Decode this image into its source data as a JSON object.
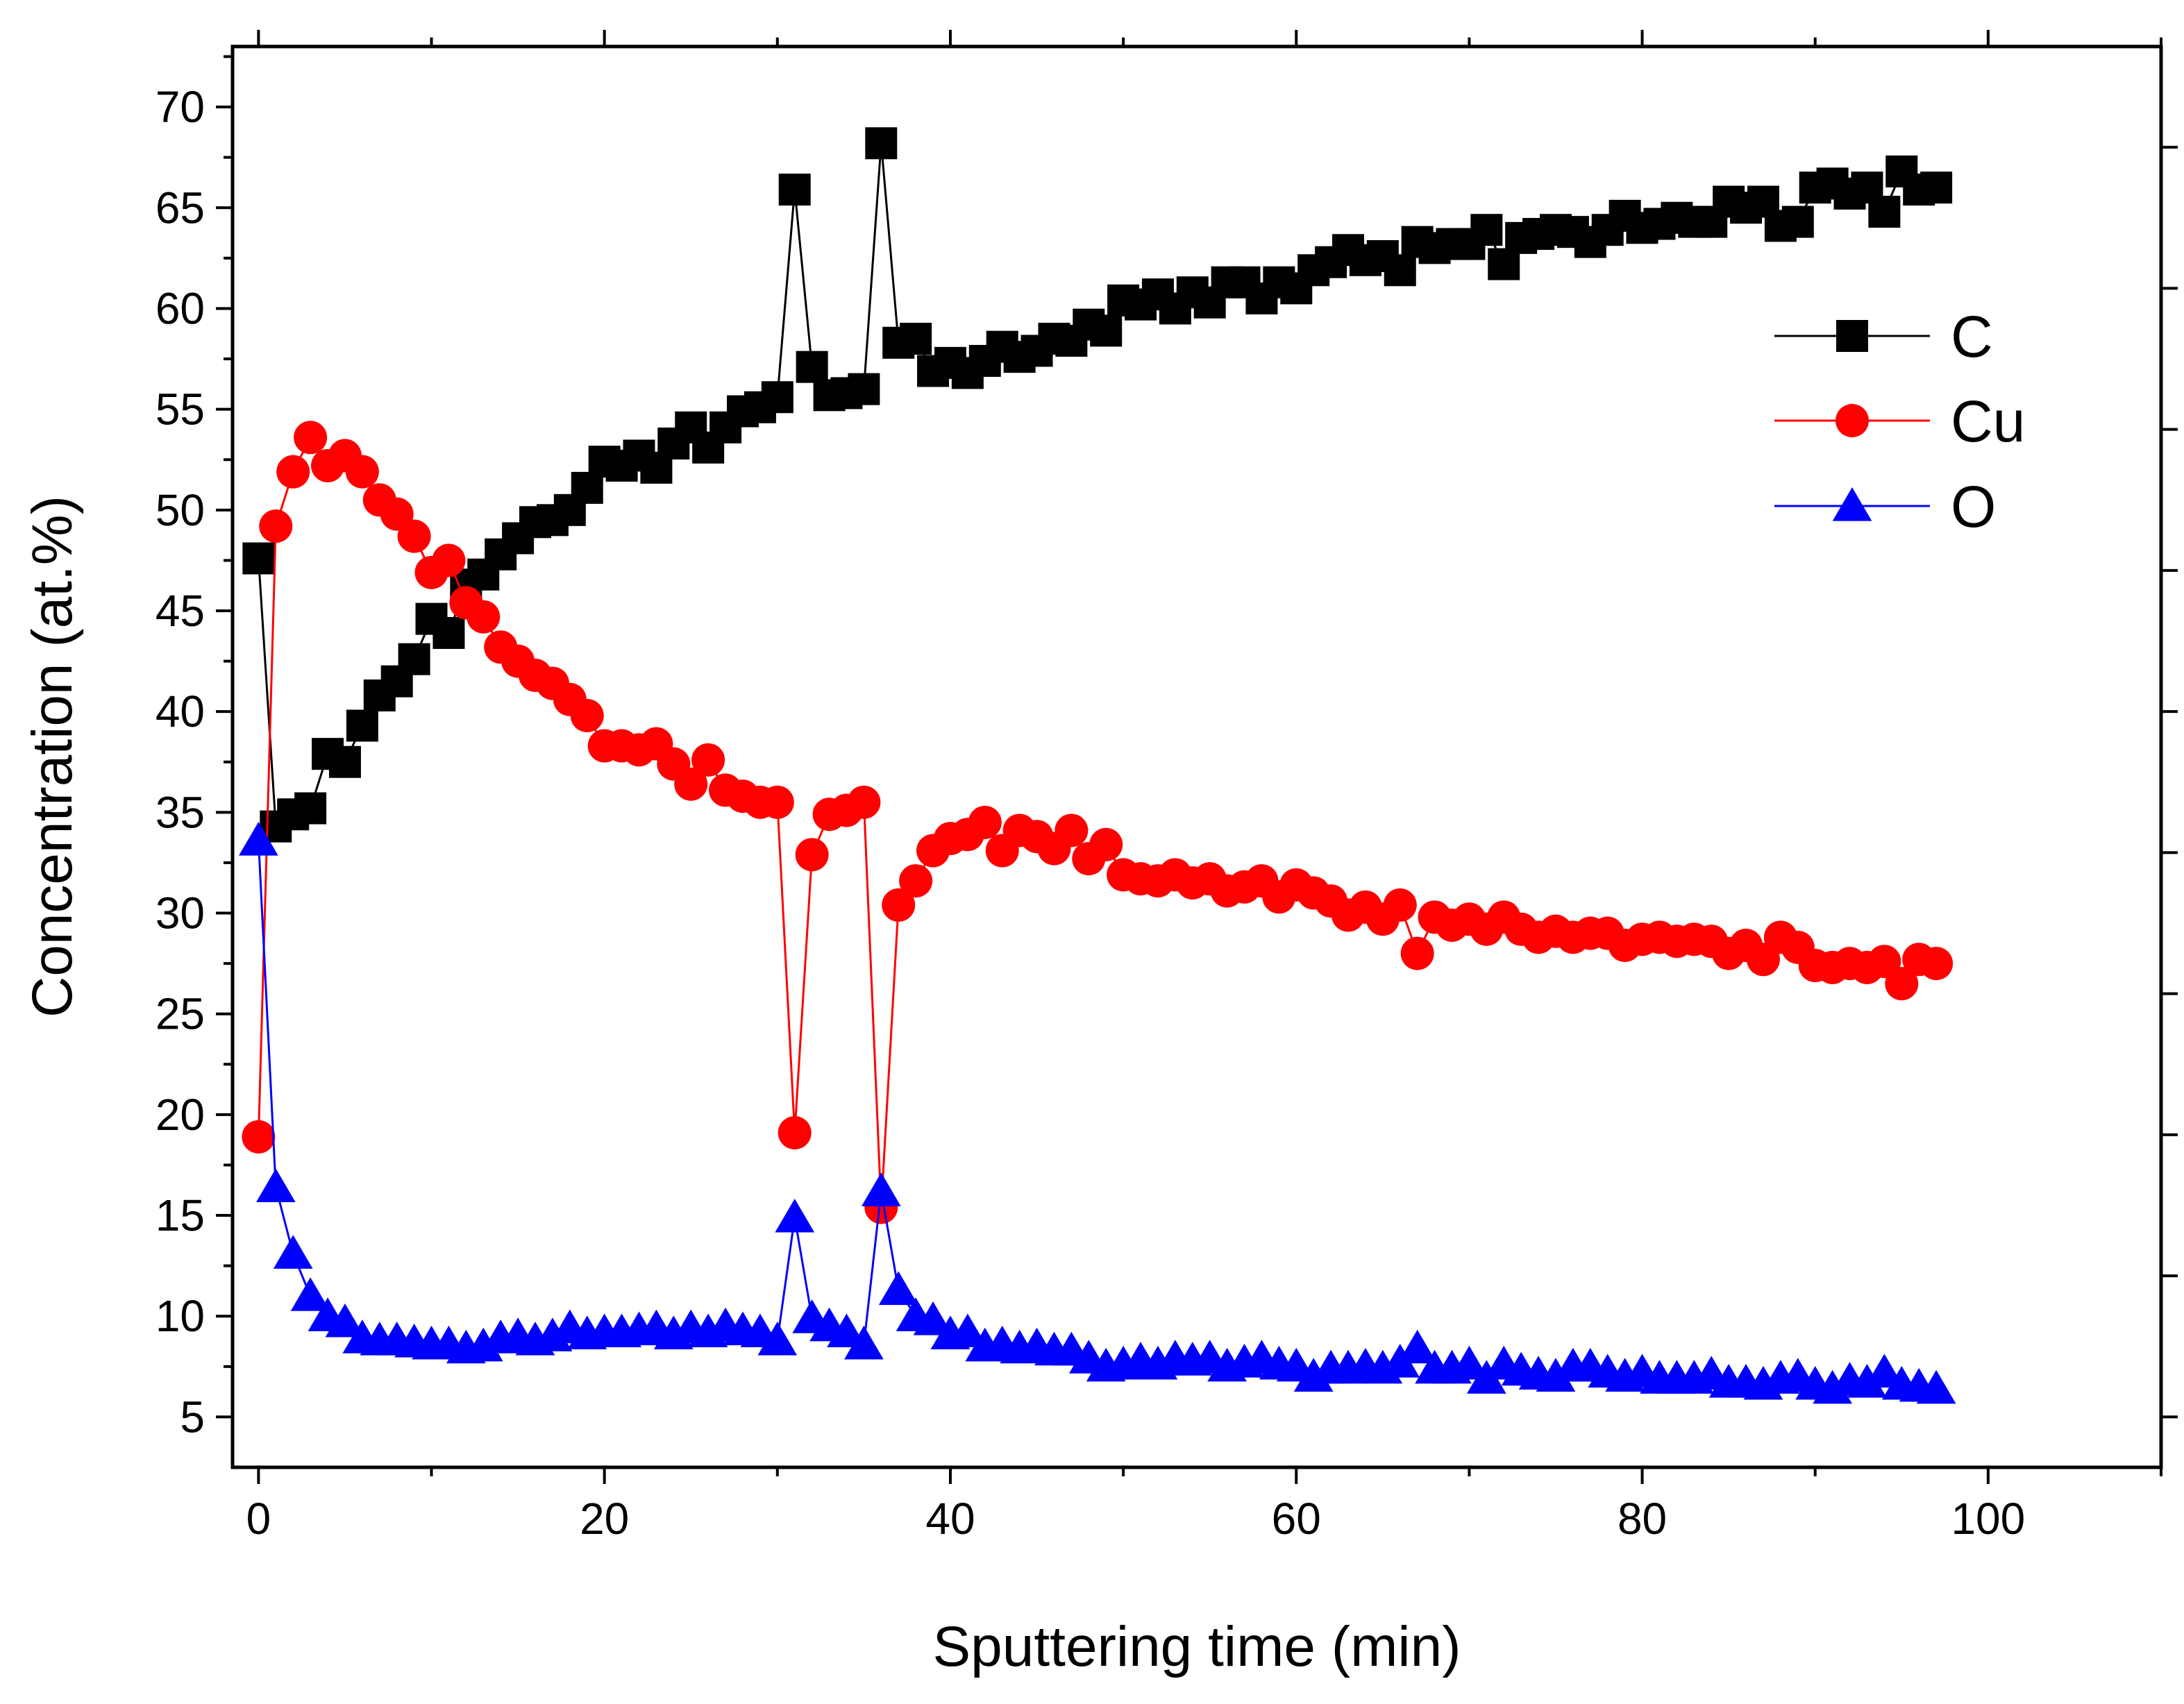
{
  "chart_data": {
    "type": "line",
    "title": "",
    "xlabel": "Sputtering time (min)",
    "ylabel": "Concentration (at.%)",
    "xlim": [
      -1.5,
      110
    ],
    "ylim": [
      2.5,
      73
    ],
    "xticks": [
      0,
      20,
      40,
      60,
      80,
      100
    ],
    "yticks": [
      5,
      10,
      15,
      20,
      25,
      30,
      35,
      40,
      45,
      50,
      55,
      60,
      65,
      70
    ],
    "grid": false,
    "legend": "right",
    "x": [
      0,
      1,
      2,
      3,
      4,
      5,
      6,
      7,
      8,
      9,
      10,
      11,
      12,
      13,
      14,
      15,
      16,
      17,
      18,
      19,
      20,
      21,
      22,
      23,
      24,
      25,
      26,
      27,
      28,
      29,
      30,
      31,
      32,
      33,
      34,
      35,
      36,
      37,
      38,
      39,
      40,
      41,
      42,
      43,
      44,
      45,
      46,
      47,
      48,
      49,
      50,
      51,
      52,
      53,
      54,
      55,
      56,
      57,
      58,
      59,
      60,
      61,
      62,
      63,
      64,
      65,
      66,
      67,
      68,
      69,
      70,
      71,
      72,
      73,
      74,
      75,
      76,
      77,
      78,
      79,
      80,
      81,
      82,
      83,
      84,
      85,
      86,
      87,
      88,
      89,
      90,
      91,
      92,
      93,
      94,
      95,
      96,
      97
    ],
    "series": [
      {
        "name": "C",
        "color": "#000000",
        "marker": "square",
        "values": [
          47.6,
          34.3,
          34.9,
          35.2,
          37.9,
          37.5,
          39.3,
          40.8,
          41.5,
          42.6,
          44.6,
          43.9,
          46.3,
          46.8,
          47.8,
          48.6,
          49.4,
          49.5,
          50.0,
          51.1,
          52.4,
          52.2,
          52.7,
          52.1,
          53.3,
          54.1,
          53.1,
          54.1,
          54.9,
          55.1,
          55.6,
          65.9,
          57.1,
          55.7,
          55.8,
          56.0,
          68.2,
          58.3,
          58.5,
          56.9,
          57.3,
          56.8,
          57.4,
          58.1,
          57.6,
          57.9,
          58.5,
          58.4,
          59.2,
          58.9,
          60.4,
          60.2,
          60.7,
          60.0,
          60.8,
          60.3,
          61.3,
          61.3,
          60.5,
          61.3,
          61.0,
          61.9,
          62.3,
          62.9,
          62.4,
          62.6,
          61.9,
          63.3,
          63.0,
          63.2,
          63.2,
          63.9,
          62.2,
          63.5,
          63.7,
          63.9,
          63.8,
          63.3,
          63.9,
          64.6,
          64.0,
          64.2,
          64.5,
          64.3,
          64.3,
          65.3,
          65.0,
          65.3,
          64.1,
          64.3,
          66.0,
          66.2,
          65.7,
          66.0,
          64.8,
          66.8,
          65.9,
          66.0
        ]
      },
      {
        "name": "Cu",
        "color": "#ff0000",
        "marker": "circle",
        "values": [
          18.9,
          49.2,
          51.9,
          53.6,
          52.2,
          52.7,
          51.9,
          50.5,
          49.8,
          48.7,
          46.9,
          47.5,
          45.4,
          44.7,
          43.2,
          42.5,
          41.8,
          41.4,
          40.6,
          39.8,
          38.3,
          38.3,
          38.1,
          38.4,
          37.4,
          36.4,
          37.6,
          36.1,
          35.8,
          35.5,
          35.5,
          19.1,
          32.9,
          34.9,
          35.1,
          35.5,
          15.4,
          30.4,
          31.6,
          33.1,
          33.7,
          33.9,
          34.5,
          33.1,
          34.1,
          33.8,
          33.2,
          34.1,
          32.7,
          33.4,
          31.9,
          31.7,
          31.6,
          31.9,
          31.5,
          31.7,
          31.1,
          31.3,
          31.6,
          30.8,
          31.4,
          31.0,
          30.6,
          29.9,
          30.3,
          29.7,
          30.4,
          28.0,
          29.8,
          29.4,
          29.7,
          29.2,
          29.8,
          29.2,
          28.8,
          29.1,
          28.8,
          29.0,
          29.0,
          28.4,
          28.7,
          28.8,
          28.6,
          28.7,
          28.6,
          28.0,
          28.4,
          27.7,
          28.8,
          28.3,
          27.4,
          27.3,
          27.5,
          27.3,
          27.6,
          26.5,
          27.7,
          27.5
        ]
      },
      {
        "name": "O",
        "color": "#0000ff",
        "marker": "triangle",
        "values": [
          33.6,
          16.4,
          13.1,
          11.0,
          10.0,
          9.7,
          8.9,
          8.8,
          8.8,
          8.7,
          8.6,
          8.6,
          8.4,
          8.5,
          8.9,
          9.0,
          8.8,
          9.0,
          9.4,
          9.1,
          9.2,
          9.2,
          9.3,
          9.4,
          9.1,
          9.4,
          9.2,
          9.5,
          9.3,
          9.2,
          8.8,
          14.9,
          9.9,
          9.5,
          9.2,
          8.6,
          16.2,
          11.3,
          10.0,
          9.8,
          9.1,
          9.2,
          8.5,
          8.6,
          8.4,
          8.5,
          8.3,
          8.3,
          7.9,
          7.5,
          7.6,
          7.8,
          7.6,
          7.9,
          7.8,
          7.9,
          7.5,
          7.7,
          7.9,
          7.6,
          7.5,
          7.0,
          7.4,
          7.4,
          7.5,
          7.4,
          7.7,
          8.4,
          7.4,
          7.4,
          7.6,
          6.9,
          7.6,
          7.3,
          7.1,
          7.0,
          7.5,
          7.5,
          7.2,
          7.0,
          7.2,
          6.9,
          6.9,
          6.9,
          7.1,
          6.7,
          6.7,
          6.6,
          6.9,
          7.0,
          6.6,
          6.4,
          6.8,
          6.7,
          7.2,
          6.6,
          6.5,
          6.4
        ]
      }
    ]
  }
}
